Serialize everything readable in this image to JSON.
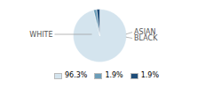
{
  "chart_data": {
    "type": "pie",
    "categories": [
      "WHITE",
      "ASIAN",
      "BLACK"
    ],
    "values": [
      96.3,
      1.9,
      1.9
    ],
    "colors": [
      "#d4e4ee",
      "#6b9db8",
      "#1e4d79"
    ],
    "value_labels": [
      "96.3%",
      "1.9%",
      "1.9%"
    ],
    "legend": "bottom"
  }
}
